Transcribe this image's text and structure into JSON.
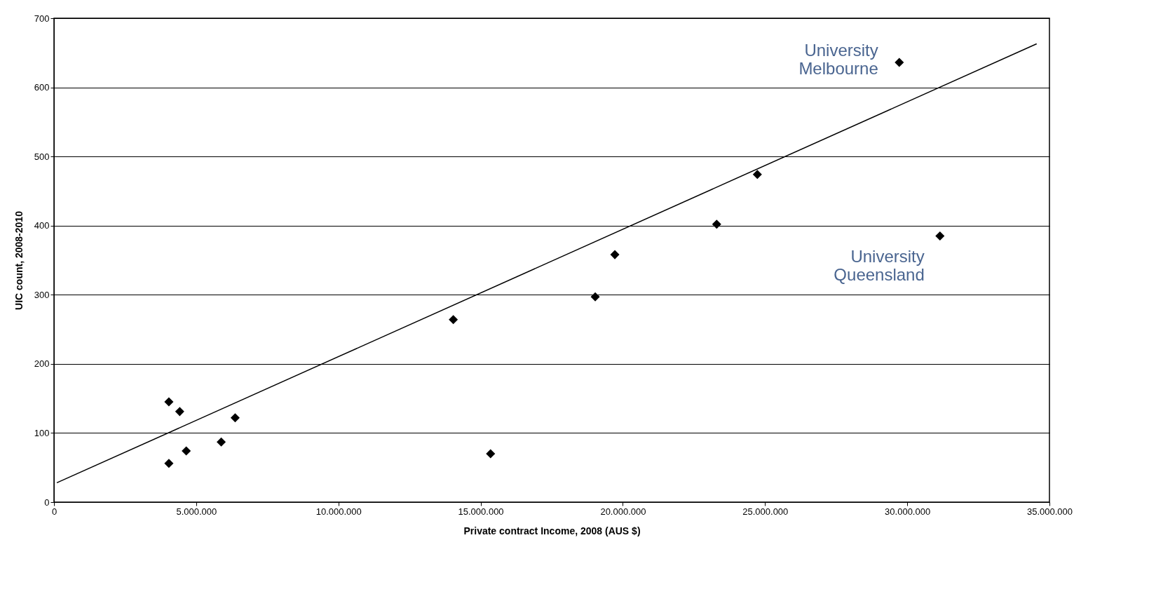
{
  "chart_data": {
    "type": "scatter",
    "xlabel": "Private contract Income, 2008 (AUS $)",
    "ylabel": "UIC count, 2008-2010",
    "xlim": [
      0,
      35000000
    ],
    "ylim": [
      0,
      700
    ],
    "xticks": [
      0,
      {
        "value": 5000000,
        "label": "5.000.000"
      },
      {
        "value": 10000000,
        "label": "10.000.000"
      },
      {
        "value": 15000000,
        "label": "15.000.000"
      },
      {
        "value": 20000000,
        "label": "20.000.000"
      },
      {
        "value": 25000000,
        "label": "25.000.000"
      },
      {
        "value": 30000000,
        "label": "30.000.000"
      },
      {
        "value": 35000000,
        "label": "35.000.000"
      }
    ],
    "yticks": [
      0,
      100,
      200,
      300,
      400,
      500,
      600,
      700
    ],
    "grid": "y",
    "series": [
      {
        "marker": "diamond",
        "color": "#000000",
        "x": [
          4040000,
          4040000,
          4420000,
          4650000,
          5880000,
          6370000,
          14040000,
          15350000,
          19030000,
          19720000,
          23300000,
          24730000,
          29720000,
          31150000
        ],
        "values": [
          56,
          145,
          131,
          74,
          87,
          122,
          264,
          70,
          297,
          358,
          402,
          474,
          636,
          385
        ]
      },
      {
        "type": "line",
        "marker": "none",
        "color": "#000000",
        "line_style": "solid",
        "x": [
          100000,
          34550000
        ],
        "values": [
          28,
          663
        ]
      }
    ],
    "annotations": [
      {
        "text": "University\nMelbourne",
        "x": 29720000,
        "y": 636
      },
      {
        "text": "University\nQueensland",
        "x": 31150000,
        "y": 385
      }
    ]
  }
}
